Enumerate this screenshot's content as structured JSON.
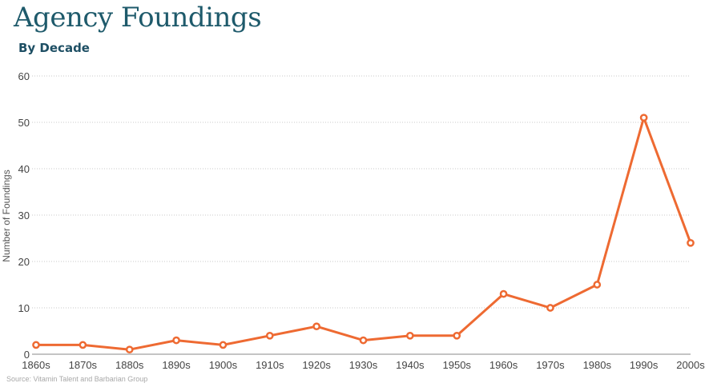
{
  "header": {
    "title": "Agency Foundings",
    "subtitle": "By Decade"
  },
  "footer": {
    "source": "Source: Vitamin Talent and Barbarian Group"
  },
  "colors": {
    "title": "#1e5a6b",
    "line": "#ee6a32",
    "grid": "#c8c8c8",
    "axis": "#888888"
  },
  "chart_data": {
    "type": "line",
    "title": "Agency Foundings",
    "subtitle": "By Decade",
    "xlabel": "",
    "ylabel": "Number of Foundings",
    "categories": [
      "1860s",
      "1870s",
      "1880s",
      "1890s",
      "1900s",
      "1910s",
      "1920s",
      "1930s",
      "1940s",
      "1950s",
      "1960s",
      "1970s",
      "1980s",
      "1990s",
      "2000s"
    ],
    "values": [
      2,
      2,
      1,
      3,
      2,
      4,
      6,
      3,
      4,
      4,
      13,
      10,
      15,
      51,
      24
    ],
    "ylim": [
      0,
      60
    ],
    "yticks": [
      0,
      10,
      20,
      30,
      40,
      50,
      60
    ],
    "grid": true,
    "legend": "none"
  }
}
